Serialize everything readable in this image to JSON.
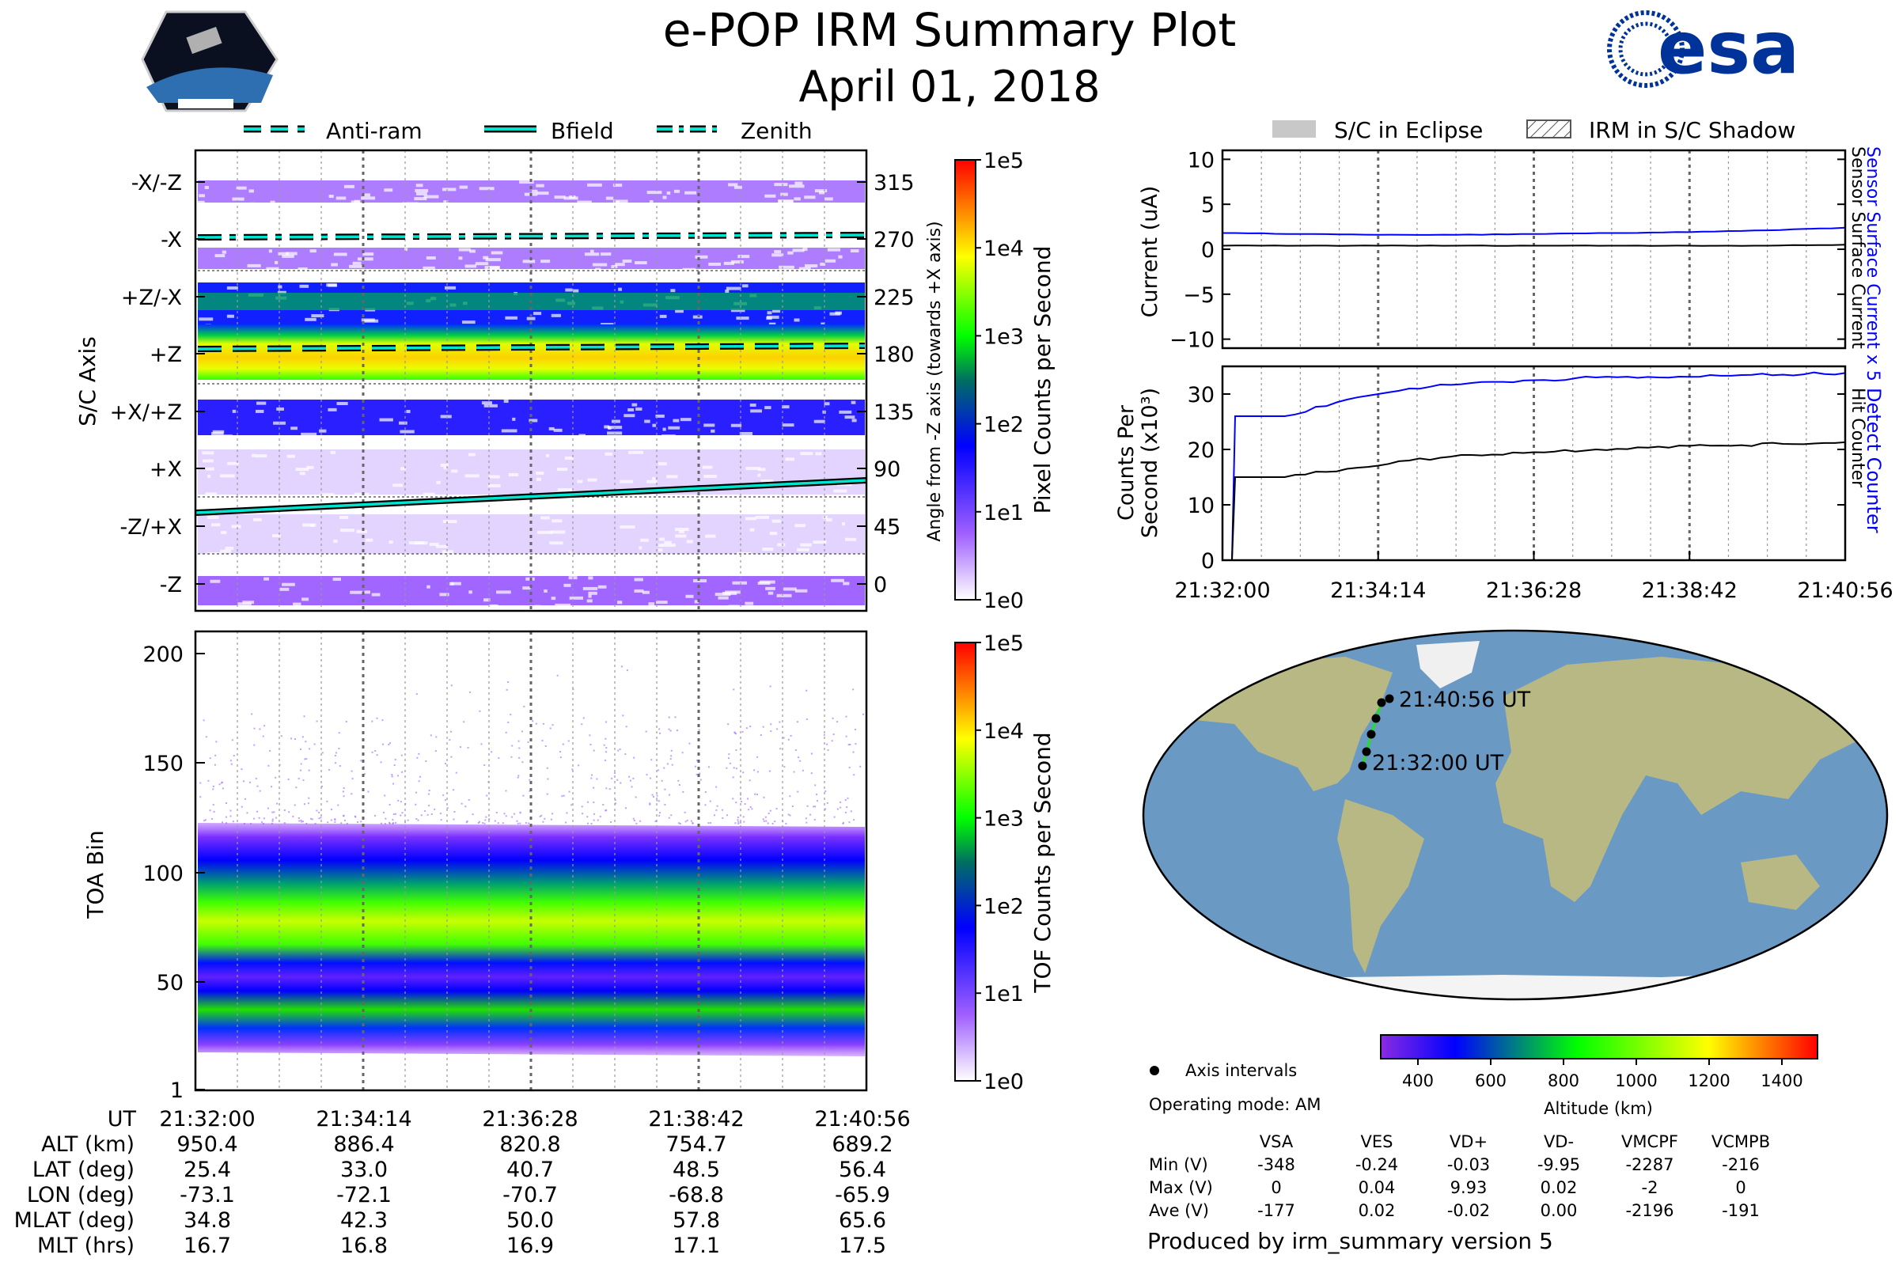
{
  "title": "e-POP IRM Summary Plot",
  "date": "April 01, 2018",
  "logos": {
    "left": "CASSIOPE",
    "right": "esa"
  },
  "colors": {
    "bfield": "#00e5d0",
    "sensor": "#0000ff",
    "eclipse": "#c8c8c8"
  },
  "left_legend": [
    {
      "label": "Anti-ram",
      "style": "dashed",
      "icon": "dashed-line-icon"
    },
    {
      "label": "Bfield",
      "style": "solid",
      "icon": "solid-line-icon"
    },
    {
      "label": "Zenith",
      "style": "dashdot",
      "icon": "dashdot-line-icon"
    }
  ],
  "right_legend": [
    {
      "label": "S/C in Eclipse",
      "icon": "gray-box-icon"
    },
    {
      "label": "IRM in S/C Shadow",
      "icon": "hatched-box-icon"
    }
  ],
  "chart_data": [
    {
      "type": "heatmap",
      "name": "pixel-panel",
      "ylabel": "S/C Axis",
      "ylabel_right": "Angle from -Z axis (towards +X axis)",
      "axis_labels": [
        "-X/-Z",
        "-X",
        "+Z/-X",
        "+Z",
        "+X/+Z",
        "+X",
        "-Z/+X",
        "-Z"
      ],
      "angle_ticks": [
        "315",
        "270",
        "225",
        "180",
        "135",
        "90",
        "45",
        "0"
      ],
      "ylim": [
        -20,
        340
      ],
      "colorbar": {
        "label": "Pixel Counts per Second",
        "ticks": [
          "1e5",
          "1e4",
          "1e3",
          "1e2",
          "1e1",
          "1e0"
        ]
      },
      "lines": {
        "zenith_deg": 272,
        "antiram_deg": 187,
        "bfield_deg": [
          38,
          75
        ]
      }
    },
    {
      "type": "heatmap",
      "name": "tof-panel",
      "ylabel": "TOA Bin",
      "yticks": [
        "200",
        "150",
        "100",
        "50",
        "1"
      ],
      "ylim": [
        1,
        200
      ],
      "colorbar": {
        "label": "TOF Counts per Second",
        "ticks": [
          "1e5",
          "1e4",
          "1e3",
          "1e2",
          "1e1",
          "1e0"
        ]
      }
    },
    {
      "type": "line",
      "name": "current-panel",
      "ylabel": "Current (uA)",
      "yticks": [
        "10",
        "5",
        "0",
        "−5",
        "−10"
      ],
      "ylim": [
        -11,
        11
      ],
      "series": [
        {
          "name": "Sensor Surface Current x 5",
          "color": "#0000ff",
          "values": [
            1.8,
            1.7,
            1.6,
            1.6,
            1.7,
            1.8,
            1.9,
            2.1,
            2.4
          ]
        },
        {
          "name": "Sensor Surface Current",
          "color": "#000000",
          "values": [
            0.4,
            0.4,
            0.4,
            0.4,
            0.4,
            0.4,
            0.4,
            0.4,
            0.5
          ]
        }
      ]
    },
    {
      "type": "line",
      "name": "counts-panel",
      "ylabel": "Counts Per Second (x10³)",
      "ylabel_line1": "Counts Per",
      "ylabel_line2": "Second (x10³)",
      "yticks": [
        "30",
        "20",
        "10",
        "0"
      ],
      "ylim": [
        0,
        35
      ],
      "series": [
        {
          "name": "Detect Counter",
          "color": "#0000ff",
          "values": [
            0,
            26,
            29,
            31,
            32,
            32.5,
            33,
            33,
            33.3,
            33.5,
            33.8
          ]
        },
        {
          "name": "Hit Counter",
          "color": "#000000",
          "values": [
            0,
            15,
            16.5,
            18,
            19,
            19.5,
            20,
            20.5,
            20.7,
            21,
            21.3
          ]
        }
      ],
      "xticks": [
        "21:32:00",
        "21:34:14",
        "21:36:28",
        "21:38:42",
        "21:40:56"
      ]
    }
  ],
  "orbit_table": {
    "ut_label": "UT",
    "ut": [
      "21:32:00",
      "21:34:14",
      "21:36:28",
      "21:38:42",
      "21:40:56"
    ],
    "rows": [
      {
        "label": "ALT (km)",
        "values": [
          "950.4",
          "886.4",
          "820.8",
          "754.7",
          "689.2"
        ]
      },
      {
        "label": "LAT (deg)",
        "values": [
          "25.4",
          "33.0",
          "40.7",
          "48.5",
          "56.4"
        ]
      },
      {
        "label": "LON (deg)",
        "values": [
          "-73.1",
          "-72.1",
          "-70.7",
          "-68.8",
          "-65.9"
        ]
      },
      {
        "label": "MLAT (deg)",
        "values": [
          "34.8",
          "42.3",
          "50.0",
          "57.8",
          "65.6"
        ]
      },
      {
        "label": "MLT (hrs)",
        "values": [
          "16.7",
          "16.8",
          "16.9",
          "17.1",
          "17.5"
        ]
      }
    ]
  },
  "map": {
    "start_label": "21:32:00 UT",
    "end_label": "21:40:56 UT",
    "legend_label": "Axis intervals",
    "altitude_colorbar": {
      "label": "Altitude (km)",
      "ticks": [
        "400",
        "600",
        "800",
        "1000",
        "1200",
        "1400"
      ]
    }
  },
  "operating_mode": "Operating mode: AM",
  "voltage_table": {
    "headers": [
      "VSA",
      "VES",
      "VD+",
      "VD-",
      "VMCPF",
      "VCMPB"
    ],
    "rows": [
      {
        "label": "Min (V)",
        "values": [
          "-348",
          "-0.24",
          "-0.03",
          "-9.95",
          "-2287",
          "-216"
        ]
      },
      {
        "label": "Max (V)",
        "values": [
          "0",
          "0.04",
          "9.93",
          "0.02",
          "-2",
          "0"
        ]
      },
      {
        "label": "Ave (V)",
        "values": [
          "-177",
          "0.02",
          "-0.02",
          "0.00",
          "-2196",
          "-191"
        ]
      }
    ]
  },
  "footer": "Produced by irm_summary version 5"
}
